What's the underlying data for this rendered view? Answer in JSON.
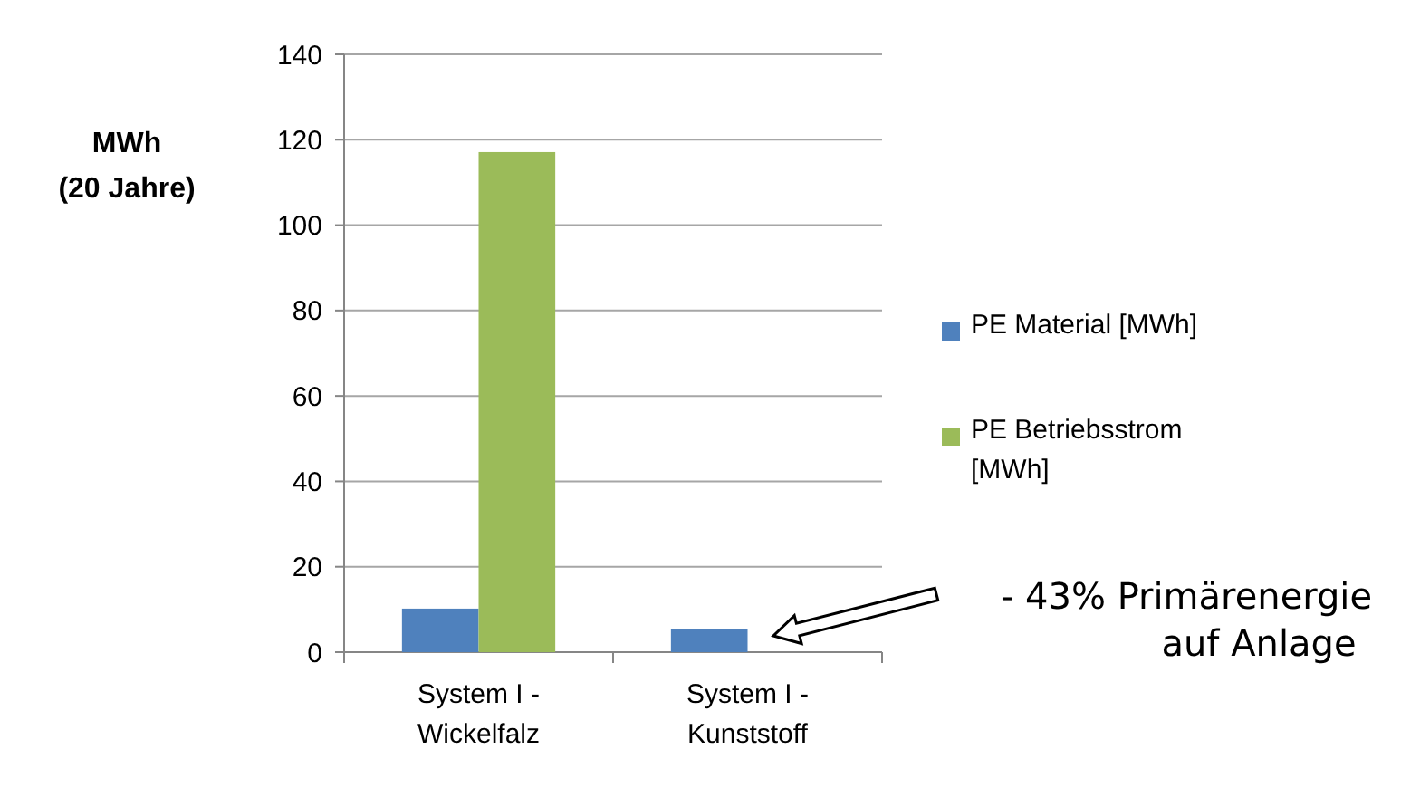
{
  "chart_data": {
    "type": "bar",
    "ylabel": "MWh\n(20 Jahre)",
    "categories": [
      "System I -\nWickelfalz",
      "System I -\nKunststoff"
    ],
    "series": [
      {
        "name": "PE Material [MWh]",
        "color": "#4f81bd",
        "values": [
          10.2,
          5.5
        ]
      },
      {
        "name": "PE Betriebsstrom\n[MWh]",
        "color": "#9bbb59",
        "values": [
          117.1,
          null
        ]
      }
    ],
    "ylim": [
      0,
      140
    ],
    "yticks": [
      0,
      20,
      40,
      60,
      80,
      100,
      120,
      140
    ],
    "grid": "y",
    "legend": "right",
    "annotations": [
      "- 43% Primärenergie\nauf Anlage"
    ]
  }
}
